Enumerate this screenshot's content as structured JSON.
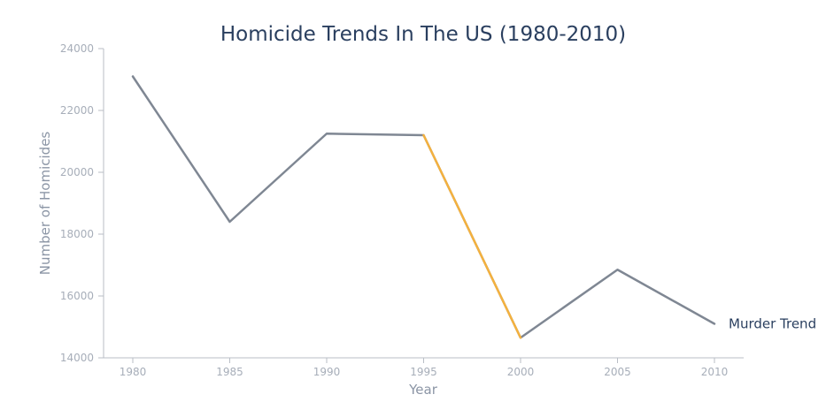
{
  "chart_data": {
    "type": "line",
    "title": "Homicide Trends In The US (1980-2010)",
    "xlabel": "Year",
    "ylabel": "Number of Homicides",
    "x": [
      1980,
      1985,
      1990,
      1995,
      2000,
      2005,
      2010
    ],
    "xticks": [
      "1980",
      "1985",
      "1990",
      "1995",
      "2000",
      "2005",
      "2010"
    ],
    "yticks": [
      "14000",
      "16000",
      "18000",
      "20000",
      "22000",
      "24000"
    ],
    "xlim": [
      1980,
      2010
    ],
    "ylim": [
      14000,
      24000
    ],
    "grid": false,
    "series": [
      {
        "name": "Murder Trend",
        "values": [
          23100,
          18400,
          21250,
          21200,
          14650,
          16850,
          15100
        ],
        "color": "#7f8793"
      }
    ],
    "highlight": {
      "from": 1995,
      "to": 2000,
      "color": "#f4b13e"
    }
  }
}
